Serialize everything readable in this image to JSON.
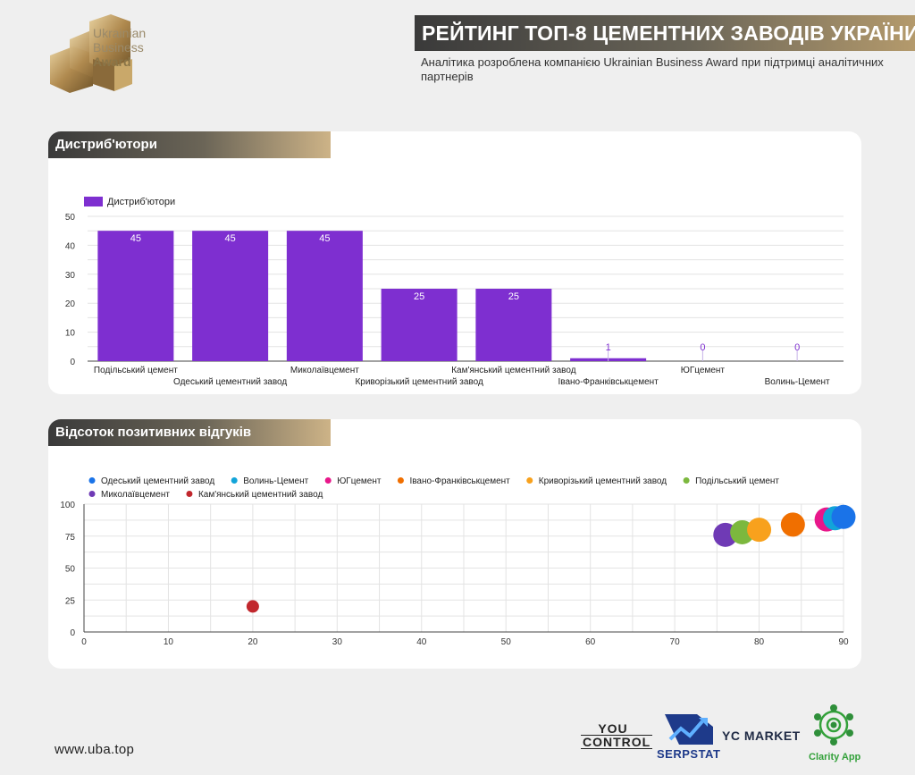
{
  "header": {
    "logo_line1": "Ukrainian",
    "logo_line2": "Business",
    "logo_line3": "Award",
    "title": "РЕЙТИНГ ТОП-8 ЦЕМЕНТНИХ ЗАВОДІВ УКРАЇНИ",
    "subtitle": "Аналітика розроблена компанією Ukrainian Business Award при підтримці аналітичних партнерів"
  },
  "section1": {
    "title": "Дистриб'ютори"
  },
  "section2": {
    "title": "Відсоток позитивних відгуків"
  },
  "chart_data": [
    {
      "type": "bar",
      "title": "Дистриб'ютори",
      "categories": [
        "Подільський цемент",
        "Одеський цементний завод",
        "Миколаївцемент",
        "Криворізький цементний завод",
        "Кам'янський цементний завод",
        "Івано-Франківськцемент",
        "ЮГцемент",
        "Волинь-Цемент"
      ],
      "series": [
        {
          "name": "Дистриб'ютори",
          "values": [
            45,
            45,
            45,
            25,
            25,
            1,
            0,
            0
          ]
        }
      ],
      "ylim": [
        0,
        50
      ],
      "yticks": [
        0,
        10,
        20,
        30,
        40,
        50
      ],
      "grid": true,
      "legend": "top-left",
      "color": "#7e2fd0"
    },
    {
      "type": "scatter",
      "title": "Відсоток позитивних відгуків",
      "series": [
        {
          "name": "Одеський цементний завод",
          "color": "#1a73e8",
          "x": 90,
          "y": 90
        },
        {
          "name": "Волинь-Цемент",
          "color": "#12a4d9",
          "x": 89,
          "y": 89
        },
        {
          "name": "ЮГцемент",
          "color": "#e8178a",
          "x": 88,
          "y": 88
        },
        {
          "name": "Івано-Франківськцемент",
          "color": "#f06f00",
          "x": 84,
          "y": 84
        },
        {
          "name": "Криворізький цементний завод",
          "color": "#f8a11d",
          "x": 80,
          "y": 80
        },
        {
          "name": "Подільський цемент",
          "color": "#7cb83e",
          "x": 78,
          "y": 78
        },
        {
          "name": "Миколаївцемент",
          "color": "#6f3ab5",
          "x": 76,
          "y": 76
        },
        {
          "name": "Кам'янський цементний завод",
          "color": "#c1272d",
          "x": 20,
          "y": 20
        }
      ],
      "xlim": [
        0,
        90
      ],
      "xticks": [
        0,
        10,
        20,
        30,
        40,
        50,
        60,
        70,
        80,
        90
      ],
      "ylim": [
        0,
        100
      ],
      "yticks": [
        0,
        25,
        50,
        75,
        100
      ],
      "grid": true,
      "legend": "top"
    }
  ],
  "footer": {
    "website": "www.uba.top",
    "partner1_line1": "YOU",
    "partner1_line2": "CONTROL",
    "partner2": "SERPSTAT",
    "partner3": "YC MARKET",
    "partner4": "Clarity App"
  }
}
